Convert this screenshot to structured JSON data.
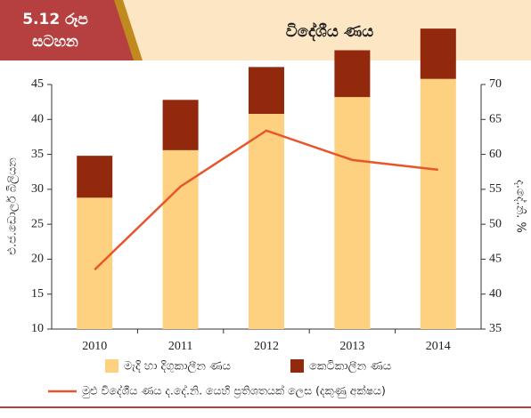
{
  "chart_data": {
    "type": "stacked_bar_line",
    "figure_label": [
      "5.12 රූප",
      "සටහන"
    ],
    "title": "විදේශීය ණය",
    "y_label": "එ.ජ.ඩොලර් බිලියන",
    "y2_label": "ද.දේ.නි. %",
    "categories": [
      "2010",
      "2011",
      "2012",
      "2013",
      "2014"
    ],
    "series": [
      {
        "name": "මැදි හා දිගුකාලීන ණය",
        "color": "#fdd17f",
        "kind": "bar",
        "values": [
          18.8,
          25.6,
          30.8,
          33.2,
          35.8
        ]
      },
      {
        "name": "කෙටිකාලීන ණය",
        "color": "#93290c",
        "kind": "bar",
        "values": [
          6.0,
          7.2,
          6.7,
          6.7,
          7.2
        ]
      },
      {
        "name": "මුළු විදේශීය ණය ද.දේ.නි. යෙහි ප්‍රතිශතයක් ලෙස (දකුණු අක්ෂය)",
        "color": "#e8552a",
        "kind": "line",
        "axis": "y2",
        "values": [
          43.5,
          55.4,
          63.4,
          59.2,
          57.8
        ]
      }
    ],
    "ylim": [
      10,
      45
    ],
    "yticks": [
      10,
      15,
      20,
      25,
      30,
      35,
      40,
      45
    ],
    "y2lim": [
      35,
      70
    ],
    "y2ticks": [
      35,
      40,
      45,
      50,
      55,
      60,
      65,
      70
    ]
  }
}
